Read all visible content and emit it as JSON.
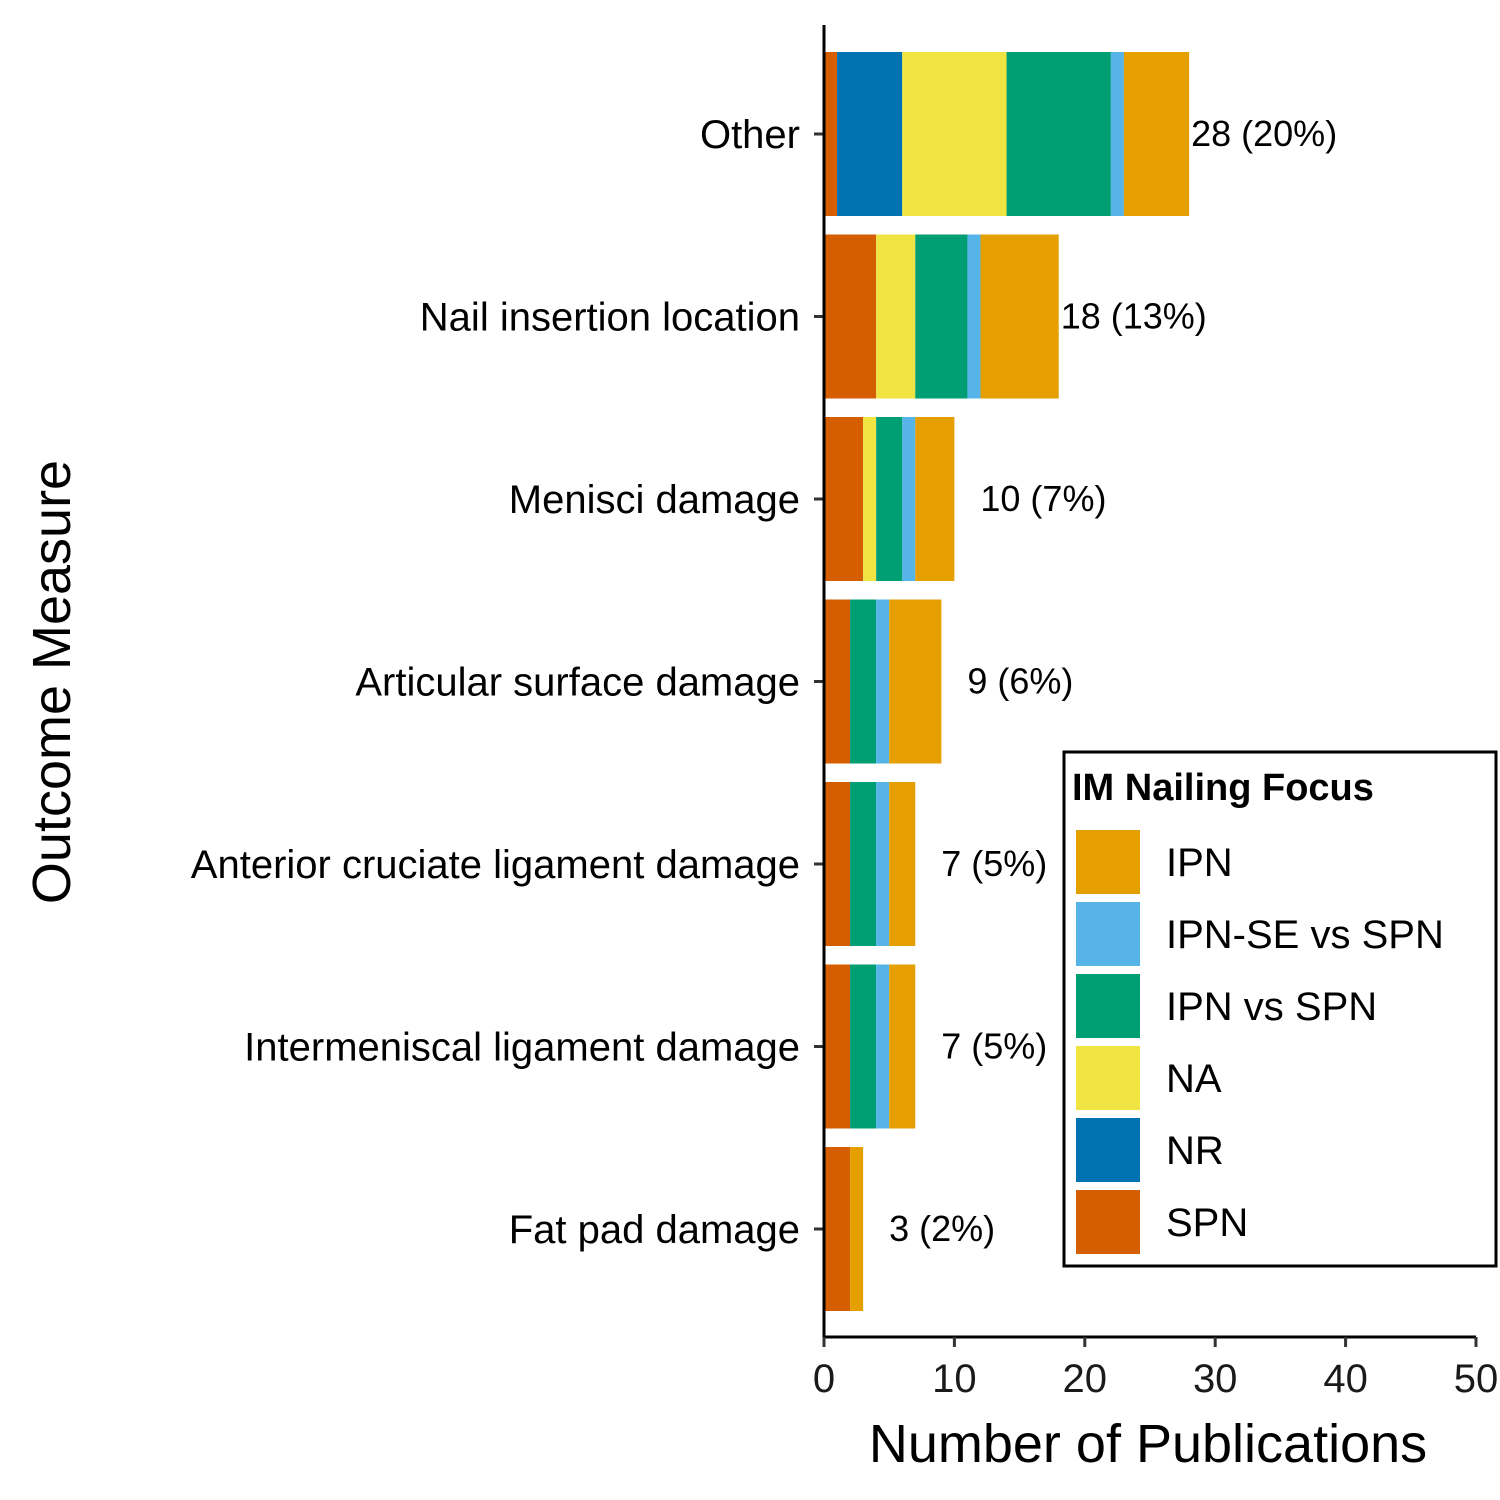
{
  "chart_data": {
    "type": "bar",
    "orientation": "horizontal",
    "stacked": true,
    "categories": [
      "Other",
      "Nail insertion location",
      "Menisci damage",
      "Articular surface damage",
      "Anterior cruciate ligament damage",
      "Intermeniscal ligament damage",
      "Fat pad damage"
    ],
    "series": [
      {
        "name": "SPN",
        "color": "#D55E00",
        "values": [
          1,
          4,
          3,
          2,
          2,
          2,
          2
        ]
      },
      {
        "name": "NR",
        "color": "#0072B2",
        "values": [
          5,
          0,
          0,
          0,
          0,
          0,
          0
        ]
      },
      {
        "name": "NA",
        "color": "#F0E442",
        "values": [
          8,
          3,
          1,
          0,
          0,
          0,
          0
        ]
      },
      {
        "name": "IPN vs SPN",
        "color": "#009E73",
        "values": [
          8,
          4,
          2,
          2,
          2,
          2,
          0
        ]
      },
      {
        "name": "IPN-SE vs SPN",
        "color": "#56B4E9",
        "values": [
          1,
          1,
          1,
          1,
          1,
          1,
          0
        ]
      },
      {
        "name": "IPN",
        "color": "#E69F00",
        "values": [
          5,
          6,
          3,
          4,
          2,
          2,
          1
        ]
      }
    ],
    "totals_labels": [
      "28 (20%)",
      "18 (13%)",
      "10 (7%)",
      "9 (6%)",
      "7 (5%)",
      "7 (5%)",
      "3 (2%)"
    ],
    "xlabel": "Number of Publications",
    "ylabel": "Outcome Measure",
    "xlim": [
      0,
      50
    ],
    "xticks": [
      0,
      10,
      20,
      30,
      40,
      50
    ],
    "grid": false,
    "legend": {
      "title": "IM Nailing Focus",
      "placement": "bottom-right",
      "items": [
        "IPN",
        "IPN-SE vs SPN",
        "IPN vs SPN",
        "NA",
        "NR",
        "SPN"
      ]
    }
  }
}
